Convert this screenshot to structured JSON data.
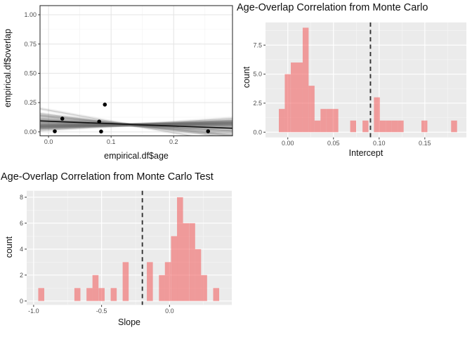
{
  "colors": {
    "panel_bg": "#EBEBEB",
    "grid_major": "#FFFFFF",
    "grid_minor": "#F7F7F7",
    "scatter_panel_bg": "#FFFFFF",
    "scatter_grid_major": "#E4E4E4",
    "scatter_grid_minor": "#F1F1F1",
    "panel_border": "#333333",
    "bar_fill": "rgba(242,100,100,0.60)",
    "vline": "#333333",
    "fit_line": "#111111",
    "sim_band": "rgba(125,125,125,0.13)",
    "sim_line": "rgba(110,110,110,0.30)",
    "point": "#000000",
    "tick_label": "#4d4d4d"
  },
  "chart_data": [
    {
      "type": "scatter",
      "title": "",
      "xlabel": "empirical.df$age",
      "ylabel": "empirical.df$overlap",
      "xlim": [
        -0.0136,
        0.294
      ],
      "ylim": [
        -0.034,
        1.078
      ],
      "xticks": [
        0.0,
        0.1,
        0.2
      ],
      "xtick_labels": [
        "0.0",
        "0.1",
        "0.2"
      ],
      "yticks": [
        0.0,
        0.25,
        0.5,
        0.75,
        1.0
      ],
      "ytick_labels": [
        "0.00",
        "0.25",
        "0.50",
        "0.75",
        "1.00"
      ],
      "xminor": [
        0.05,
        0.15,
        0.25
      ],
      "yminor": [
        0.125,
        0.375,
        0.625,
        0.875
      ],
      "grid": true,
      "points": [
        [
          0.01,
          0.005
        ],
        [
          0.022,
          0.113
        ],
        [
          0.081,
          0.088
        ],
        [
          0.084,
          0.003
        ],
        [
          0.09,
          0.233
        ],
        [
          0.255,
          0.005
        ]
      ],
      "fit_line": {
        "intercept": 0.0905,
        "slope": -0.205
      },
      "sim_lines": [
        [
          -0.96,
          0.185
        ],
        [
          -0.68,
          0.148
        ],
        [
          -0.59,
          0.137
        ],
        [
          -0.55,
          0.132
        ],
        [
          -0.5,
          0.125
        ],
        [
          -0.41,
          0.113
        ],
        [
          -0.33,
          0.104
        ],
        [
          -0.31,
          0.1
        ],
        [
          -0.29,
          0.097
        ],
        [
          -0.16,
          0.081
        ],
        [
          -0.15,
          0.079
        ],
        [
          -0.13,
          0.077
        ],
        [
          -0.06,
          0.068
        ],
        [
          -0.05,
          0.066
        ],
        [
          -0.02,
          0.063
        ],
        [
          0.0,
          0.06
        ],
        [
          0.02,
          0.057
        ],
        [
          0.03,
          0.056
        ],
        [
          0.05,
          0.053
        ],
        [
          0.07,
          0.051
        ],
        [
          0.08,
          0.049
        ],
        [
          0.09,
          0.048
        ],
        [
          0.1,
          0.047
        ],
        [
          0.11,
          0.045
        ],
        [
          0.12,
          0.044
        ],
        [
          0.13,
          0.043
        ],
        [
          0.15,
          0.04
        ],
        [
          0.17,
          0.038
        ],
        [
          0.2,
          0.034
        ],
        [
          0.22,
          0.031
        ],
        [
          0.25,
          0.027
        ],
        [
          0.34,
          0.016
        ]
      ]
    },
    {
      "type": "bar",
      "title": "Age-Overlap Correlation from Monte Carlo",
      "xlabel": "Intercept",
      "ylabel": "count",
      "xlim": [
        -0.0244,
        0.1955
      ],
      "ylim": [
        -0.45,
        9.45
      ],
      "xticks": [
        0.0,
        0.05,
        0.1,
        0.15
      ],
      "xtick_labels": [
        "0.00",
        "0.05",
        "0.10",
        "0.15"
      ],
      "yticks": [
        0.0,
        2.5,
        5.0,
        7.5
      ],
      "ytick_labels": [
        "0.0",
        "2.5",
        "5.0",
        "7.5"
      ],
      "xminor": [
        0.025,
        0.075,
        0.125,
        0.175
      ],
      "yminor": [
        1.25,
        3.75,
        6.25,
        8.75
      ],
      "grid": true,
      "binwidth": 0.0065,
      "bins": [
        [
          -0.0098,
          2
        ],
        [
          -0.0033,
          5
        ],
        [
          0.0033,
          6
        ],
        [
          0.0098,
          6
        ],
        [
          0.0163,
          9
        ],
        [
          0.0228,
          4
        ],
        [
          0.0293,
          1
        ],
        [
          0.0358,
          2
        ],
        [
          0.0423,
          2
        ],
        [
          0.0488,
          2
        ],
        [
          0.0683,
          1
        ],
        [
          0.0818,
          1
        ],
        [
          0.0943,
          3
        ],
        [
          0.1008,
          1
        ],
        [
          0.1073,
          1
        ],
        [
          0.1138,
          1
        ],
        [
          0.1203,
          1
        ],
        [
          0.1463,
          1
        ],
        [
          0.1788,
          1
        ]
      ],
      "observed_value": 0.0905
    },
    {
      "type": "bar",
      "title": "Age-Overlap Correlation from Monte Carlo Test",
      "xlabel": "Slope",
      "ylabel": "count",
      "xlim": [
        -1.051,
        0.458
      ],
      "ylim": [
        -0.3,
        8.5
      ],
      "xticks": [
        -1.0,
        -0.5,
        0.0
      ],
      "xtick_labels": [
        "-1.0",
        "-0.5",
        "0.0"
      ],
      "yticks": [
        0,
        2,
        4,
        6,
        8
      ],
      "ytick_labels": [
        "0",
        "2",
        "4",
        "6",
        "8"
      ],
      "xminor": [
        -0.75,
        -0.25,
        0.25
      ],
      "yminor": [
        1,
        3,
        5,
        7
      ],
      "grid": true,
      "binwidth": 0.0443,
      "bins": [
        [
          -0.966,
          1
        ],
        [
          -0.7,
          1
        ],
        [
          -0.611,
          1
        ],
        [
          -0.567,
          2
        ],
        [
          -0.522,
          1
        ],
        [
          -0.433,
          1
        ],
        [
          -0.345,
          3
        ],
        [
          -0.167,
          3
        ],
        [
          -0.078,
          2
        ],
        [
          -0.034,
          3
        ],
        [
          0.011,
          5
        ],
        [
          0.055,
          8
        ],
        [
          0.099,
          6
        ],
        [
          0.144,
          6
        ],
        [
          0.188,
          4
        ],
        [
          0.232,
          2
        ],
        [
          0.321,
          1
        ]
      ],
      "observed_value": -0.2
    }
  ]
}
